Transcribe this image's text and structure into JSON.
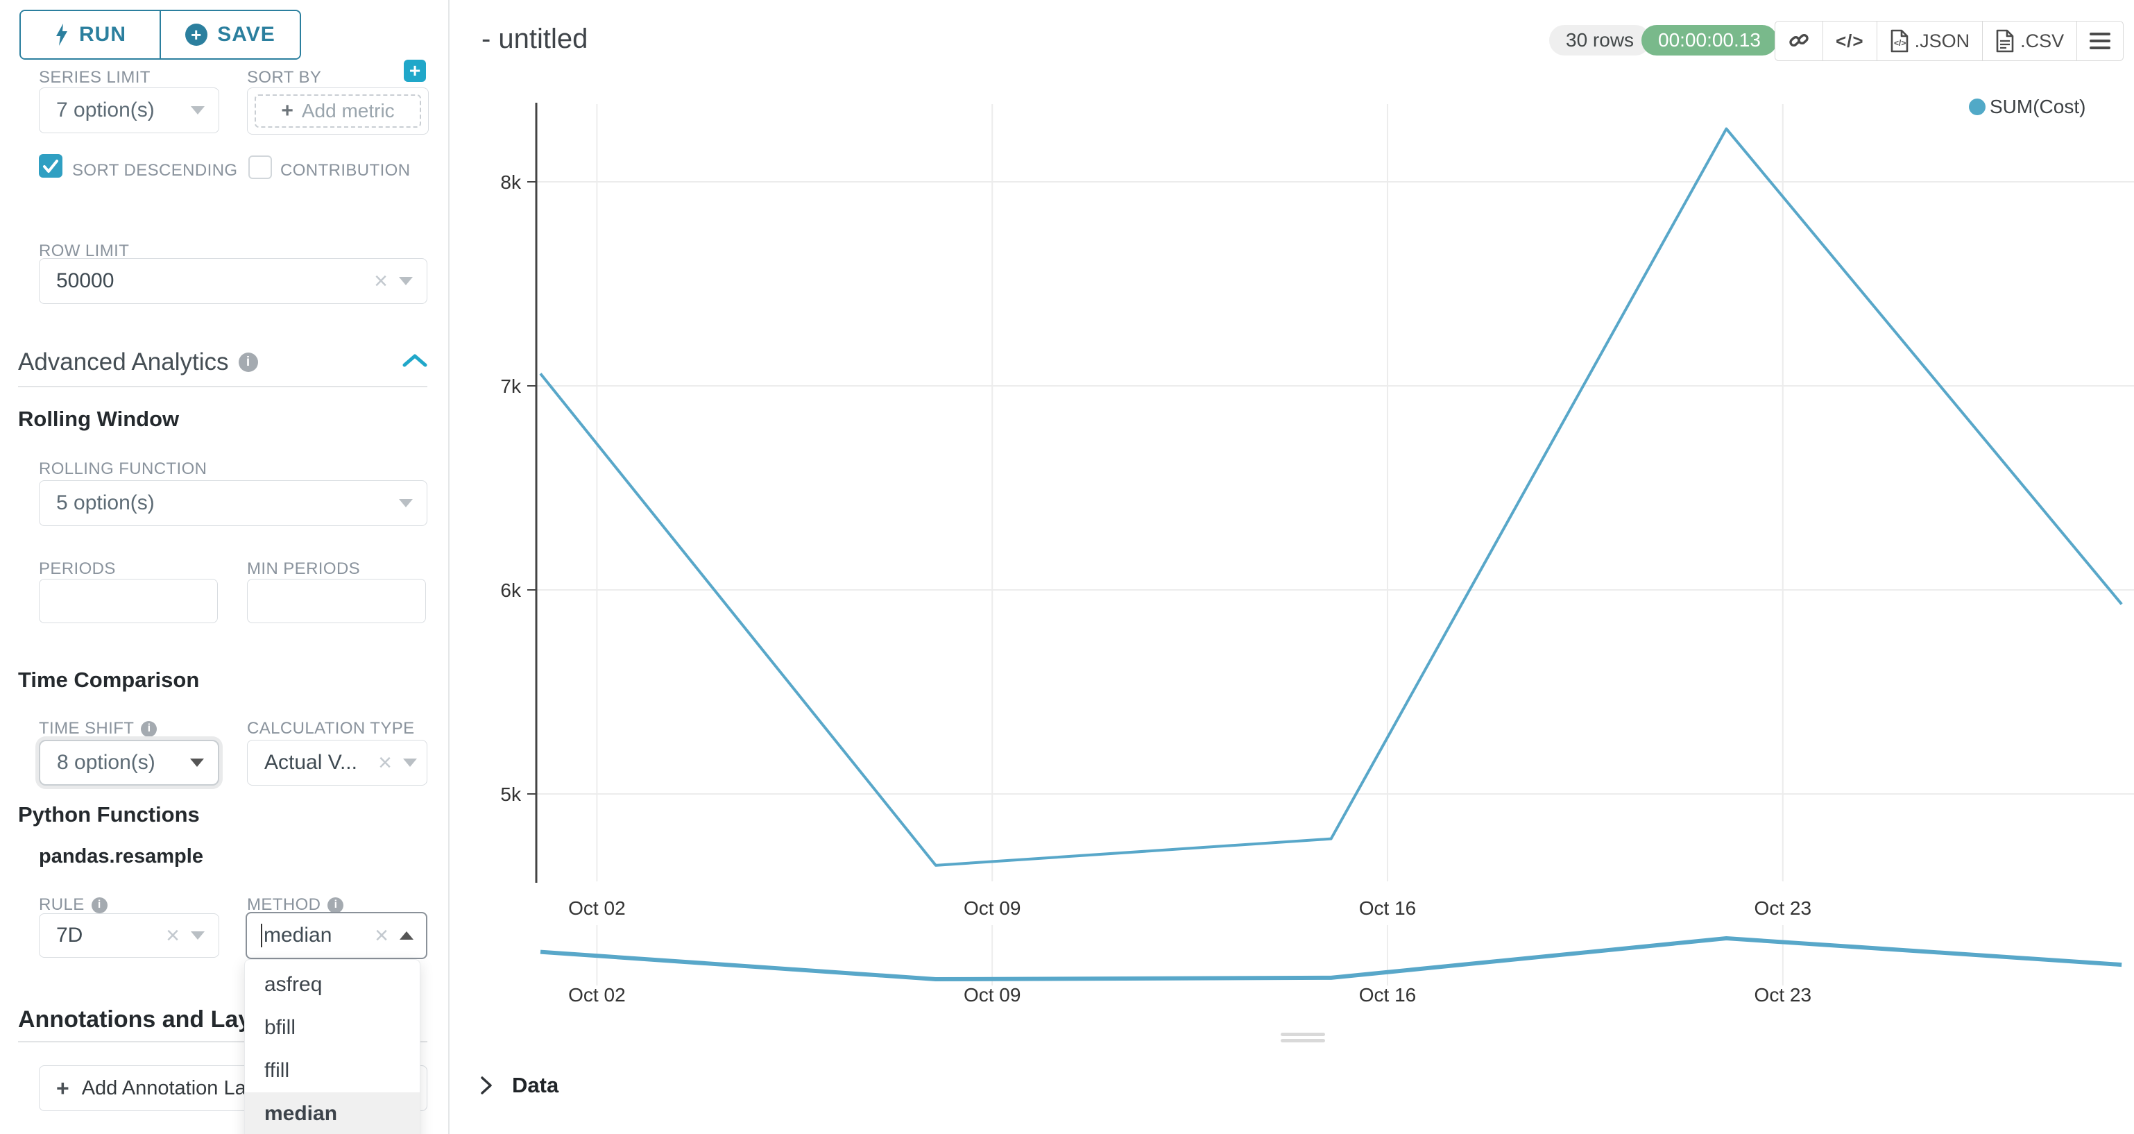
{
  "sidebar": {
    "run_label": "RUN",
    "save_label": "SAVE",
    "series_limit": {
      "label": "SERIES LIMIT",
      "value": "7 option(s)"
    },
    "sort_by": {
      "label": "SORT BY",
      "add_metric_label": "Add metric"
    },
    "sort_descending": {
      "label": "SORT DESCENDING",
      "checked": true
    },
    "contribution": {
      "label": "CONTRIBUTION",
      "checked": false
    },
    "row_limit": {
      "label": "ROW LIMIT",
      "value": "50000"
    },
    "advanced_analytics": {
      "title": "Advanced Analytics"
    },
    "rolling_window": {
      "title": "Rolling Window",
      "rolling_function": {
        "label": "ROLLING FUNCTION",
        "value": "5 option(s)"
      },
      "periods": {
        "label": "PERIODS",
        "value": ""
      },
      "min_periods": {
        "label": "MIN PERIODS",
        "value": ""
      }
    },
    "time_comparison": {
      "title": "Time Comparison",
      "time_shift": {
        "label": "TIME SHIFT",
        "value": "8 option(s)"
      },
      "calculation_type": {
        "label": "CALCULATION TYPE",
        "value": "Actual V..."
      }
    },
    "python_functions": {
      "title": "Python Functions",
      "subtitle": "pandas.resample",
      "rule": {
        "label": "RULE",
        "value": "7D"
      },
      "method": {
        "label": "METHOD",
        "value": "median",
        "options": [
          "asfreq",
          "bfill",
          "ffill",
          "median"
        ],
        "selected_option": "median"
      }
    },
    "annotations": {
      "title": "Annotations and Layers",
      "add_button_label": "Add Annotation Layer"
    }
  },
  "header": {
    "title": "- untitled",
    "rows_badge": "30 rows",
    "timer_badge": "00:00:00.13",
    "export_json_label": ".JSON",
    "export_csv_label": ".CSV",
    "icons": [
      "link-icon",
      "code-icon",
      "json-file-icon",
      "csv-file-icon",
      "menu-icon"
    ]
  },
  "data_panel": {
    "title": "Data"
  },
  "chart_data": {
    "type": "line",
    "title": "",
    "legend": [
      {
        "label": "SUM(Cost)",
        "color": "#51a9c7"
      }
    ],
    "legend_position": "top-right",
    "grid": true,
    "series": [
      {
        "name": "SUM(Cost)",
        "x": [
          "Oct 01",
          "Oct 08",
          "Oct 15",
          "Oct 22",
          "Oct 29"
        ],
        "x_day": [
          1,
          8,
          15,
          22,
          29
        ],
        "values": [
          7060,
          4650,
          4780,
          8260,
          5930
        ]
      }
    ],
    "x_ticks": [
      {
        "day": 2,
        "label": "Oct 02"
      },
      {
        "day": 9,
        "label": "Oct 09"
      },
      {
        "day": 16,
        "label": "Oct 16"
      },
      {
        "day": 23,
        "label": "Oct 23"
      }
    ],
    "y_ticks": [
      {
        "value": 8000,
        "label": "8k"
      },
      {
        "value": 7000,
        "label": "7k"
      },
      {
        "value": 6000,
        "label": "6k"
      },
      {
        "value": 5000,
        "label": "5k"
      }
    ],
    "ylim": [
      4350,
      8450
    ],
    "has_range_preview": true
  },
  "colors": {
    "accent": "#20a7c9",
    "outline_button": "#2b7f9e",
    "series_line": "#58a7c9",
    "timer_green": "#79b98b",
    "label_gray": "#8a939d",
    "gridline": "#ececec",
    "axis": "#444444"
  }
}
